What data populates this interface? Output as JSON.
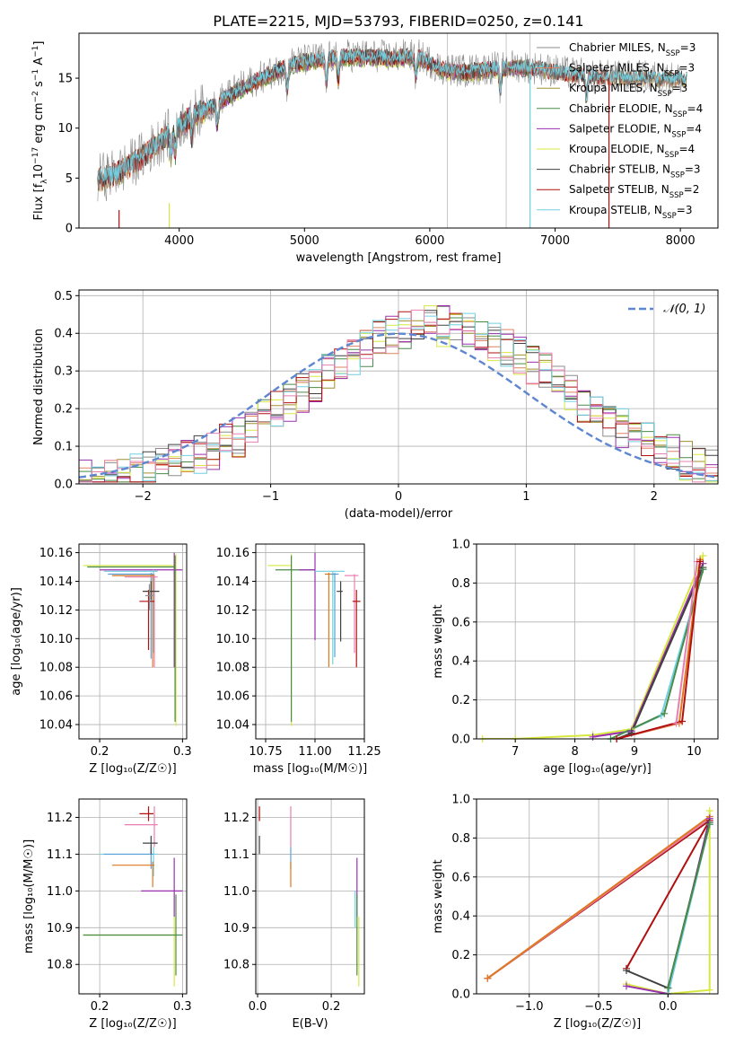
{
  "figure": {
    "title": "PLATE=2215, MJD=53793, FIBERID=0250, z=0.141",
    "colors": {
      "chabrier_miles": "#8c8c8c",
      "salpeter_miles": "#e08060",
      "kroupa_miles": "#a09030",
      "chabrier_elodie": "#4a8a4a",
      "salpeter_elodie": "#9a30b0",
      "kroupa_elodie": "#d8e840",
      "chabrier_stelib": "#404040",
      "salpeter_stelib": "#b01010",
      "kroupa_stelib": "#70d0e0",
      "pink": "#e87fb0",
      "blue": "#5aa0d8",
      "orange": "#e07820",
      "gaussian": "#5f86d0"
    }
  },
  "chart_data": [
    {
      "id": "spectrum",
      "type": "line",
      "title": "PLATE=2215, MJD=53793, FIBERID=0250, z=0.141",
      "xlabel": "wavelength [Angstrom, rest frame]",
      "ylabel_parts": [
        "Flux [f",
        "λ",
        "10",
        "−17",
        " erg cm",
        "−2",
        " s",
        "−1",
        " A",
        "−1",
        "]"
      ],
      "xlim": [
        3200,
        8300
      ],
      "ylim": [
        0,
        19.5
      ],
      "xticks": [
        4000,
        5000,
        6000,
        7000,
        8000
      ],
      "yticks": [
        0,
        5,
        10,
        15
      ],
      "grid": false,
      "legend_position": "upper-right",
      "legend": [
        {
          "label": "Chabrier MILES, N",
          "sub": "SSP",
          "suffix": "=3",
          "color_key": "chabrier_miles"
        },
        {
          "label": "Salpeter MILES, N",
          "sub": "SSP",
          "suffix": "=3",
          "color_key": "salpeter_miles"
        },
        {
          "label": "Kroupa MILES, N",
          "sub": "SSP",
          "suffix": "=3",
          "color_key": "kroupa_miles"
        },
        {
          "label": "Chabrier ELODIE, N",
          "sub": "SSP",
          "suffix": "=4",
          "color_key": "chabrier_elodie"
        },
        {
          "label": "Salpeter ELODIE, N",
          "sub": "SSP",
          "suffix": "=4",
          "color_key": "salpeter_elodie"
        },
        {
          "label": "Kroupa ELODIE, N",
          "sub": "SSP",
          "suffix": "=4",
          "color_key": "kroupa_elodie"
        },
        {
          "label": "Chabrier STELIB, N",
          "sub": "SSP",
          "suffix": "=3",
          "color_key": "chabrier_stelib"
        },
        {
          "label": "Salpeter STELIB, N",
          "sub": "SSP",
          "suffix": "=2",
          "color_key": "salpeter_stelib"
        },
        {
          "label": "Kroupa STELIB, N",
          "sub": "SSP",
          "suffix": "=3",
          "color_key": "kroupa_stelib"
        }
      ],
      "continuum": [
        [
          3350,
          4.6
        ],
        [
          3500,
          5.2
        ],
        [
          3700,
          6.8
        ],
        [
          3900,
          9.0
        ],
        [
          4100,
          11.0
        ],
        [
          4300,
          12.3
        ],
        [
          4500,
          13.8
        ],
        [
          4700,
          15.0
        ],
        [
          4900,
          16.2
        ],
        [
          5100,
          16.6
        ],
        [
          5300,
          16.9
        ],
        [
          5500,
          16.9
        ],
        [
          5700,
          16.8
        ],
        [
          5900,
          17.0
        ],
        [
          6100,
          15.6
        ],
        [
          6300,
          15.4
        ],
        [
          6500,
          15.7
        ],
        [
          6700,
          15.9
        ],
        [
          6900,
          15.6
        ],
        [
          7100,
          15.2
        ],
        [
          7300,
          14.9
        ],
        [
          7500,
          14.8
        ],
        [
          7700,
          14.8
        ],
        [
          8050,
          14.6
        ]
      ],
      "absorption_lines": [
        3934,
        3969,
        4102,
        4304,
        4861,
        5175,
        5270,
        5890,
        6563,
        7250
      ],
      "dropouts": [
        {
          "x": 3520,
          "color_key": "salpeter_stelib",
          "y_top": 1.8
        },
        {
          "x": 3920,
          "color_key": "kroupa_elodie",
          "y_top": 2.5
        },
        {
          "x": 6800,
          "color_key": "kroupa_stelib",
          "y_top": 15.5
        },
        {
          "x": 7430,
          "color_key": "salpeter_stelib",
          "y_top": 15.0
        }
      ],
      "masked_lines": [
        6140,
        6610,
        6800
      ]
    },
    {
      "id": "residuals",
      "type": "histogram",
      "xlabel": "(data-model)/error",
      "ylabel": "Normed distribution",
      "xlim": [
        -2.5,
        2.5
      ],
      "ylim": [
        0,
        0.515
      ],
      "xticks": [
        -2,
        -1,
        0,
        1,
        2
      ],
      "xtick_labels": [
        "−2",
        "−1",
        "0",
        "1",
        "2"
      ],
      "yticks": [
        0.0,
        0.1,
        0.2,
        0.3,
        0.4,
        0.5
      ],
      "ytick_labels": [
        "0.0",
        "0.1",
        "0.2",
        "0.3",
        "0.4",
        "0.5"
      ],
      "grid": true,
      "bin_width": 0.1,
      "gaussian_label": "𝒩(0, 1)",
      "legend_position": "upper-right",
      "hist_mean": 0.3,
      "hist_sigma": 1.0,
      "hist_peak": 0.42
    },
    {
      "id": "age_vs_Z",
      "type": "scatter",
      "xlabel": "Z [log₁₀(Z/Z☉)]",
      "ylabel": "age  [log₁₀(age/yr)]",
      "xlim": [
        0.175,
        0.305
      ],
      "ylim": [
        10.03,
        10.166
      ],
      "xticks": [
        0.2,
        0.3
      ],
      "xtick_labels": [
        "0.2",
        "0.3"
      ],
      "yticks": [
        10.04,
        10.06,
        10.08,
        10.1,
        10.12,
        10.14,
        10.16
      ],
      "ytick_labels": [
        "10.04",
        "10.06",
        "10.08",
        "10.10",
        "10.12",
        "10.14",
        "10.16"
      ],
      "grid": true,
      "points": [
        {
          "x": 0.292,
          "y": 10.151,
          "xlo": 0.18,
          "xhi": 0.292,
          "ylo": 10.039,
          "yhi": 10.159,
          "color_key": "kroupa_elodie"
        },
        {
          "x": 0.29,
          "y": 10.148,
          "xlo": 0.2,
          "xhi": 0.3,
          "ylo": 10.08,
          "yhi": 10.16,
          "color_key": "salpeter_elodie"
        },
        {
          "x": 0.291,
          "y": 10.15,
          "xlo": 0.185,
          "xhi": 0.291,
          "ylo": 10.042,
          "yhi": 10.158,
          "color_key": "chabrier_elodie"
        },
        {
          "x": 0.265,
          "y": 10.147,
          "xlo": 0.205,
          "xhi": 0.27,
          "ylo": 10.09,
          "yhi": 10.148,
          "color_key": "kroupa_stelib"
        },
        {
          "x": 0.262,
          "y": 10.145,
          "xlo": 0.21,
          "xhi": 0.265,
          "ylo": 10.086,
          "yhi": 10.146,
          "color_key": "blue"
        },
        {
          "x": 0.264,
          "y": 10.144,
          "xlo": 0.215,
          "xhi": 0.266,
          "ylo": 10.08,
          "yhi": 10.145,
          "color_key": "orange"
        },
        {
          "x": 0.266,
          "y": 10.143,
          "xlo": 0.23,
          "xhi": 0.27,
          "ylo": 10.08,
          "yhi": 10.145,
          "color_key": "pink"
        },
        {
          "x": 0.262,
          "y": 10.133,
          "xlo": 0.252,
          "xhi": 0.272,
          "ylo": 10.127,
          "yhi": 10.14,
          "color_key": "chabrier_stelib"
        },
        {
          "x": 0.259,
          "y": 10.126,
          "xlo": 0.248,
          "xhi": 0.266,
          "ylo": 10.092,
          "yhi": 10.134,
          "color_key": "salpeter_stelib"
        },
        {
          "x": 0.26,
          "y": 10.13,
          "xlo": 0.255,
          "xhi": 0.265,
          "ylo": 10.12,
          "yhi": 10.138,
          "color_key": "chabrier_miles"
        }
      ]
    },
    {
      "id": "age_vs_mass",
      "type": "scatter",
      "xlabel": "mass [log₁₀(M/M☉)]",
      "xlim": [
        10.7,
        11.25
      ],
      "ylim": [
        10.03,
        10.166
      ],
      "xticks": [
        10.75,
        11.0,
        11.25
      ],
      "xtick_labels": [
        "10.75",
        "11.00",
        "11.25"
      ],
      "yticks": [
        10.04,
        10.06,
        10.08,
        10.1,
        10.12,
        10.14,
        10.16
      ],
      "ytick_labels": [
        "10.04",
        "10.06",
        "10.08",
        "10.10",
        "10.12",
        "10.14",
        "10.16"
      ],
      "grid": true,
      "points": [
        {
          "x": 10.88,
          "y": 10.151,
          "xlo": 10.76,
          "xhi": 10.88,
          "ylo": 10.039,
          "yhi": 10.159,
          "color_key": "kroupa_elodie"
        },
        {
          "x": 10.88,
          "y": 10.148,
          "xlo": 10.8,
          "xhi": 11.0,
          "ylo": 10.042,
          "yhi": 10.158,
          "color_key": "chabrier_elodie"
        },
        {
          "x": 11.0,
          "y": 10.148,
          "xlo": 10.92,
          "xhi": 11.0,
          "ylo": 10.099,
          "yhi": 10.16,
          "color_key": "salpeter_elodie"
        },
        {
          "x": 11.09,
          "y": 10.147,
          "xlo": 11.0,
          "xhi": 11.15,
          "ylo": 10.082,
          "yhi": 10.147,
          "color_key": "kroupa_stelib"
        },
        {
          "x": 11.07,
          "y": 10.145,
          "xlo": 11.05,
          "xhi": 11.1,
          "ylo": 10.08,
          "yhi": 10.146,
          "color_key": "orange"
        },
        {
          "x": 11.1,
          "y": 10.145,
          "xlo": 11.08,
          "xhi": 11.12,
          "ylo": 10.087,
          "yhi": 10.146,
          "color_key": "blue"
        },
        {
          "x": 11.2,
          "y": 10.144,
          "xlo": 11.15,
          "xhi": 11.22,
          "ylo": 10.09,
          "yhi": 10.145,
          "color_key": "pink"
        },
        {
          "x": 11.13,
          "y": 10.133,
          "xlo": 11.11,
          "xhi": 11.14,
          "ylo": 10.098,
          "yhi": 10.14,
          "color_key": "chabrier_stelib"
        },
        {
          "x": 11.21,
          "y": 10.126,
          "xlo": 11.19,
          "xhi": 11.23,
          "ylo": 10.08,
          "yhi": 10.134,
          "color_key": "salpeter_stelib"
        }
      ]
    },
    {
      "id": "weight_vs_age",
      "type": "line",
      "xlabel": "age  [log₁₀(age/yr)]",
      "ylabel": "mass weight",
      "xlim": [
        6.35,
        10.4
      ],
      "ylim": [
        0,
        1.0
      ],
      "xticks": [
        7,
        8,
        9,
        10
      ],
      "xtick_labels": [
        "7",
        "8",
        "9",
        "10"
      ],
      "yticks": [
        0.0,
        0.2,
        0.4,
        0.6,
        0.8,
        1.0
      ],
      "ytick_labels": [
        "0.0",
        "0.2",
        "0.4",
        "0.6",
        "0.8",
        "1.0"
      ],
      "grid": true,
      "series": [
        {
          "color_key": "kroupa_elodie",
          "x": [
            6.45,
            7.0,
            8.3,
            8.95,
            10.15
          ],
          "y": [
            0.0,
            0.0,
            0.02,
            0.05,
            0.94
          ]
        },
        {
          "color_key": "salpeter_elodie",
          "x": [
            8.3,
            8.95,
            10.15
          ],
          "y": [
            0.01,
            0.04,
            0.9
          ]
        },
        {
          "color_key": "chabrier_stelib",
          "x": [
            8.7,
            8.95,
            10.15
          ],
          "y": [
            0.0,
            0.03,
            0.88
          ]
        },
        {
          "color_key": "kroupa_stelib",
          "x": [
            8.6,
            9.45,
            10.15
          ],
          "y": [
            0.0,
            0.12,
            0.87
          ]
        },
        {
          "color_key": "chabrier_elodie",
          "x": [
            8.6,
            9.5,
            10.15
          ],
          "y": [
            0.0,
            0.13,
            0.87
          ]
        },
        {
          "color_key": "orange",
          "x": [
            8.7,
            9.75,
            10.1
          ],
          "y": [
            0.0,
            0.08,
            0.92
          ]
        },
        {
          "color_key": "pink",
          "x": [
            8.7,
            9.7,
            10.05
          ],
          "y": [
            0.0,
            0.08,
            0.91
          ]
        },
        {
          "color_key": "salpeter_stelib",
          "x": [
            8.7,
            9.8,
            10.1
          ],
          "y": [
            0.0,
            0.09,
            0.91
          ]
        }
      ]
    },
    {
      "id": "mass_vs_Z",
      "type": "scatter",
      "xlabel": "Z [log₁₀(Z/Z☉)]",
      "ylabel": "mass [log₁₀(M/M☉)]",
      "xlim": [
        0.175,
        0.305
      ],
      "ylim": [
        10.72,
        11.25
      ],
      "xticks": [
        0.2,
        0.3
      ],
      "xtick_labels": [
        "0.2",
        "0.3"
      ],
      "yticks": [
        10.8,
        10.9,
        11.0,
        11.1,
        11.2
      ],
      "ytick_labels": [
        "10.8",
        "10.9",
        "11.0",
        "11.1",
        "11.2"
      ],
      "grid": true,
      "points": [
        {
          "x": 0.29,
          "y": 10.88,
          "xlo": 0.18,
          "xhi": 0.29,
          "ylo": 10.74,
          "yhi": 10.93,
          "color_key": "kroupa_elodie"
        },
        {
          "x": 0.292,
          "y": 10.88,
          "xlo": 0.18,
          "xhi": 0.3,
          "ylo": 10.77,
          "yhi": 10.99,
          "color_key": "chabrier_elodie"
        },
        {
          "x": 0.29,
          "y": 11.0,
          "xlo": 0.25,
          "xhi": 0.3,
          "ylo": 10.93,
          "yhi": 11.09,
          "color_key": "salpeter_elodie"
        },
        {
          "x": 0.265,
          "y": 11.1,
          "xlo": 0.2,
          "xhi": 0.27,
          "ylo": 11.04,
          "yhi": 11.12,
          "color_key": "kroupa_stelib"
        },
        {
          "x": 0.262,
          "y": 11.1,
          "xlo": 0.205,
          "xhi": 0.265,
          "ylo": 11.06,
          "yhi": 11.12,
          "color_key": "blue"
        },
        {
          "x": 0.264,
          "y": 11.07,
          "xlo": 0.215,
          "xhi": 0.266,
          "ylo": 11.01,
          "yhi": 11.08,
          "color_key": "orange"
        },
        {
          "x": 0.266,
          "y": 11.18,
          "xlo": 0.23,
          "xhi": 0.27,
          "ylo": 11.12,
          "yhi": 11.23,
          "color_key": "pink"
        },
        {
          "x": 0.262,
          "y": 11.13,
          "xlo": 0.252,
          "xhi": 0.27,
          "ylo": 11.1,
          "yhi": 11.15,
          "color_key": "chabrier_stelib"
        },
        {
          "x": 0.259,
          "y": 11.21,
          "xlo": 0.248,
          "xhi": 0.265,
          "ylo": 11.19,
          "yhi": 11.23,
          "color_key": "salpeter_stelib"
        }
      ]
    },
    {
      "id": "mass_vs_ebv",
      "type": "scatter",
      "xlabel": "E(B-V)",
      "xlim": [
        -0.005,
        0.29
      ],
      "ylim": [
        10.72,
        11.25
      ],
      "xticks": [
        0.0,
        0.2
      ],
      "xtick_labels": [
        "0.0",
        "0.2"
      ],
      "yticks": [
        10.8,
        10.9,
        11.0,
        11.1,
        11.2
      ],
      "ytick_labels": [
        "10.8",
        "10.9",
        "11.0",
        "11.1",
        "11.2"
      ],
      "grid": true,
      "points": [
        {
          "x": 0.005,
          "y": 11.21,
          "ylo": 11.19,
          "yhi": 11.23,
          "color_key": "salpeter_stelib"
        },
        {
          "x": 0.005,
          "y": 11.13,
          "ylo": 11.1,
          "yhi": 11.15,
          "color_key": "chabrier_stelib"
        },
        {
          "x": 0.09,
          "y": 11.18,
          "ylo": 11.12,
          "yhi": 11.23,
          "color_key": "pink"
        },
        {
          "x": 0.09,
          "y": 11.1,
          "ylo": 11.06,
          "yhi": 11.12,
          "color_key": "blue"
        },
        {
          "x": 0.09,
          "y": 11.07,
          "ylo": 11.01,
          "yhi": 11.08,
          "color_key": "orange"
        },
        {
          "x": 0.27,
          "y": 11.0,
          "ylo": 10.93,
          "yhi": 11.09,
          "color_key": "salpeter_elodie"
        },
        {
          "x": 0.27,
          "y": 10.88,
          "ylo": 10.77,
          "yhi": 10.99,
          "color_key": "chabrier_elodie"
        },
        {
          "x": 0.275,
          "y": 10.88,
          "ylo": 10.74,
          "yhi": 10.93,
          "color_key": "kroupa_elodie"
        },
        {
          "x": 0.265,
          "y": 10.95,
          "ylo": 10.9,
          "yhi": 11.0,
          "color_key": "kroupa_stelib"
        }
      ]
    },
    {
      "id": "weight_vs_Z",
      "type": "line",
      "xlabel": "Z [log₁₀(Z/Z☉)]",
      "ylabel": "mass weight",
      "xlim": [
        -1.38,
        0.36
      ],
      "ylim": [
        0,
        1.0
      ],
      "xticks": [
        -1.0,
        -0.5,
        0.0
      ],
      "xtick_labels": [
        "−1.0",
        "−0.5",
        "0.0"
      ],
      "yticks": [
        0.0,
        0.2,
        0.4,
        0.6,
        0.8,
        1.0
      ],
      "ytick_labels": [
        "0.0",
        "0.2",
        "0.4",
        "0.6",
        "0.8",
        "1.0"
      ],
      "grid": true,
      "series": [
        {
          "color_key": "salpeter_stelib",
          "x": [
            -0.3,
            0.3,
            -1.3
          ],
          "y": [
            0.13,
            0.89,
            0.08
          ]
        },
        {
          "color_key": "pink",
          "x": [
            -1.3,
            0.3
          ],
          "y": [
            0.08,
            0.9
          ]
        },
        {
          "color_key": "orange",
          "x": [
            -1.3,
            0.3
          ],
          "y": [
            0.08,
            0.91
          ]
        },
        {
          "color_key": "kroupa_elodie",
          "x": [
            -0.3,
            0.0,
            0.3,
            0.3
          ],
          "y": [
            0.05,
            0.0,
            0.02,
            0.94
          ]
        },
        {
          "color_key": "salpeter_elodie",
          "x": [
            -0.3,
            0.0,
            0.3
          ],
          "y": [
            0.04,
            0.0,
            0.9
          ]
        },
        {
          "color_key": "chabrier_stelib",
          "x": [
            -0.3,
            0.0,
            0.3
          ],
          "y": [
            0.12,
            0.03,
            0.88
          ]
        },
        {
          "color_key": "kroupa_stelib",
          "x": [
            0.0,
            0.3
          ],
          "y": [
            0.0,
            0.87
          ]
        },
        {
          "color_key": "chabrier_elodie",
          "x": [
            0.0,
            0.3
          ],
          "y": [
            0.03,
            0.87
          ]
        }
      ]
    }
  ]
}
